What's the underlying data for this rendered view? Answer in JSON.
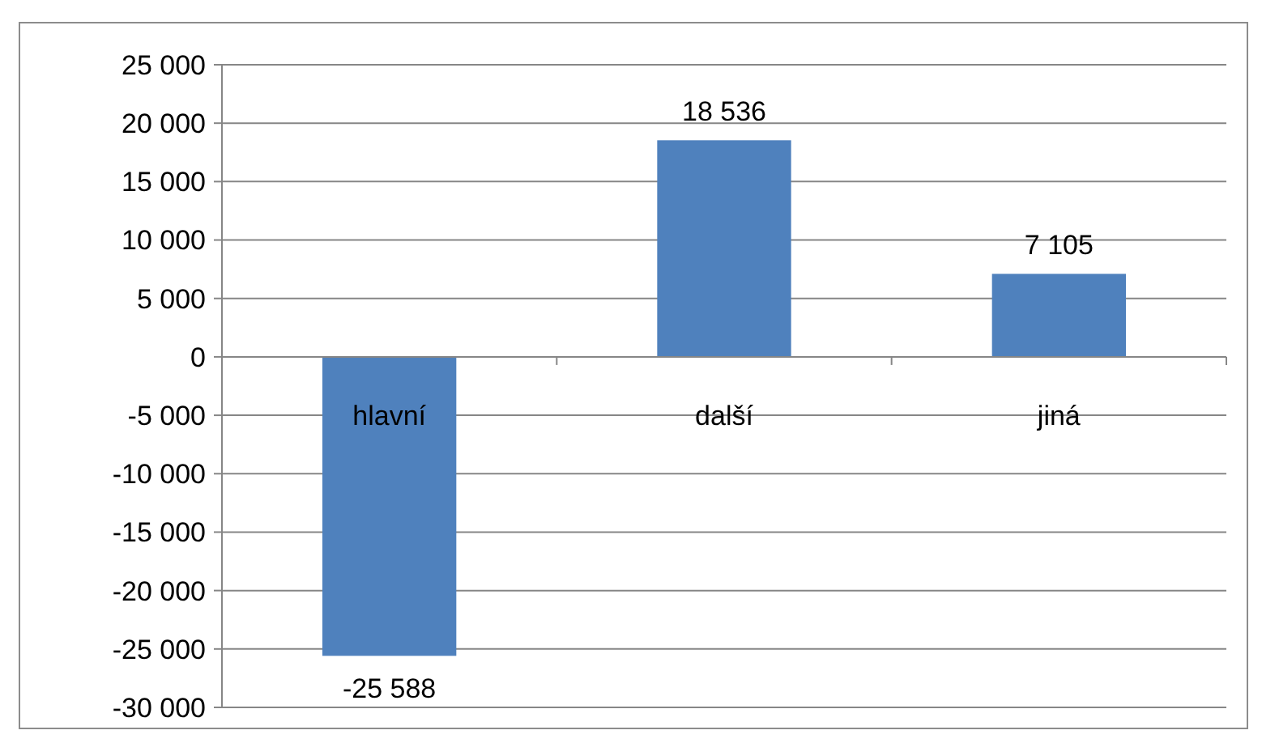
{
  "chart_data": {
    "type": "bar",
    "categories": [
      "hlavní",
      "další",
      "jiná"
    ],
    "values": [
      -25588,
      18536,
      7105
    ],
    "value_labels": [
      "-25 588",
      "18 536",
      "7 105"
    ],
    "color": "#4f81bd",
    "ylim": [
      -30000,
      25000
    ],
    "yticks": [
      {
        "value": -30000,
        "label": "-30 000"
      },
      {
        "value": -25000,
        "label": "-25 000"
      },
      {
        "value": -20000,
        "label": "-20 000"
      },
      {
        "value": -15000,
        "label": "-15 000"
      },
      {
        "value": -10000,
        "label": "-10 000"
      },
      {
        "value": -5000,
        "label": "-5 000"
      },
      0,
      {
        "value": 5000,
        "label": "5 000"
      },
      {
        "value": 10000,
        "label": "10 000"
      },
      {
        "value": 15000,
        "label": "15 000"
      },
      {
        "value": 20000,
        "label": "20 000"
      },
      {
        "value": 25000,
        "label": "25 000"
      }
    ],
    "grid": "y"
  }
}
